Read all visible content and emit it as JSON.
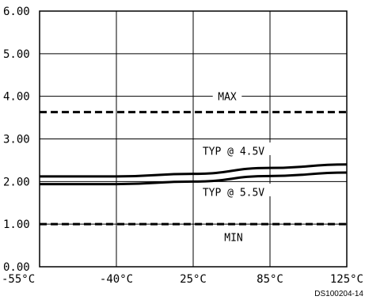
{
  "chart_data": {
    "type": "line",
    "title": "",
    "xlabel": "",
    "ylabel": "",
    "categories": [
      "-55°C",
      "-40°C",
      "25°C",
      "85°C",
      "125°C"
    ],
    "yticks": [
      "0.00",
      "1.00",
      "2.00",
      "3.00",
      "4.00",
      "5.00",
      "6.00"
    ],
    "ylim": [
      0,
      6
    ],
    "grid": true,
    "series": [
      {
        "name": "MAX",
        "style": "dashed",
        "values": [
          3.63,
          3.63,
          3.63,
          3.63,
          3.63
        ]
      },
      {
        "name": "TYP @ 4.5V",
        "style": "solid",
        "values": [
          2.12,
          2.12,
          2.18,
          2.32,
          2.4
        ]
      },
      {
        "name": "TYP @ 5.5V",
        "style": "solid",
        "values": [
          1.94,
          1.94,
          2.0,
          2.13,
          2.21
        ]
      },
      {
        "name": "MIN",
        "style": "dashed",
        "values": [
          1.0,
          1.0,
          1.0,
          1.0,
          1.0
        ]
      }
    ]
  },
  "footer": {
    "code": "DS100204-14"
  },
  "colors": {
    "line": "#000000",
    "background": "#ffffff"
  }
}
